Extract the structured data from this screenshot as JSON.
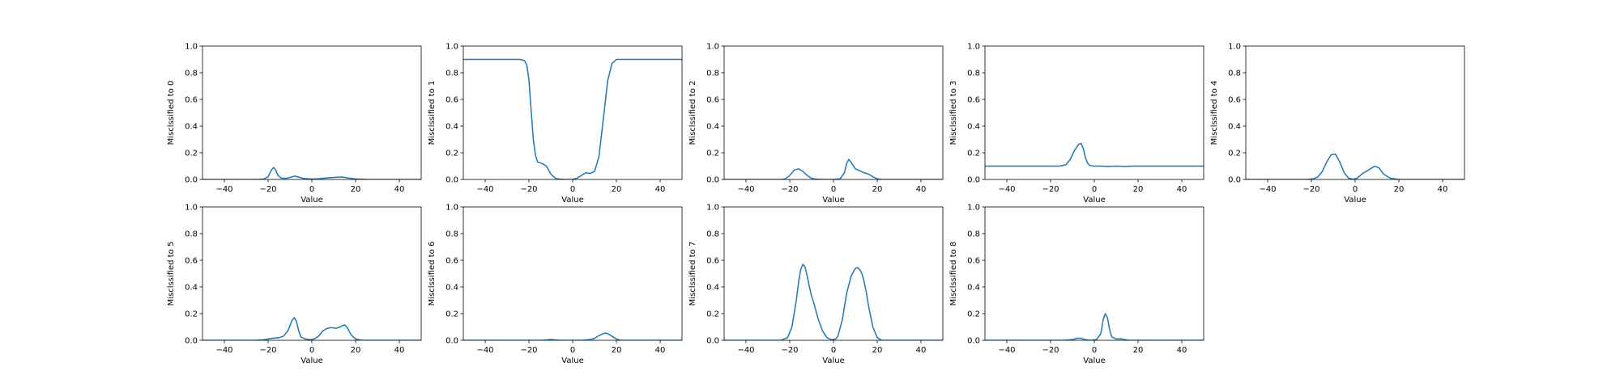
{
  "figure": {
    "background": "#ffffff",
    "line_color": "#1f77b4",
    "grid": false
  },
  "chart_data": [
    {
      "type": "line",
      "xlabel": "Value",
      "ylabel": "Misclssified to 0",
      "xlim": [
        -50,
        50
      ],
      "ylim": [
        0,
        1
      ],
      "xticks": [
        -40,
        -20,
        0,
        20,
        40
      ],
      "xtick_labels": [
        "−40",
        "−20",
        "0",
        "20",
        "40"
      ],
      "yticks": [
        0,
        0.2,
        0.4,
        0.6,
        0.8,
        1.0
      ],
      "ytick_labels": [
        "0.0",
        "0.2",
        "0.4",
        "0.6",
        "0.8",
        "1.0"
      ],
      "x": [
        -50,
        -25,
        -22,
        -20,
        -18.5,
        -17.5,
        -16.5,
        -15.5,
        -14,
        -12,
        -10,
        -8,
        -6,
        -4,
        -2,
        0,
        3,
        6,
        10,
        14,
        17,
        20,
        25,
        50
      ],
      "y": [
        0,
        0,
        0.003,
        0.02,
        0.07,
        0.09,
        0.07,
        0.03,
        0.01,
        0.008,
        0.015,
        0.025,
        0.018,
        0.008,
        0.005,
        0.003,
        0.005,
        0.01,
        0.015,
        0.018,
        0.01,
        0.004,
        0,
        0
      ]
    },
    {
      "type": "line",
      "xlabel": "Value",
      "ylabel": "Misclssified to 1",
      "xlim": [
        -50,
        50
      ],
      "ylim": [
        0,
        1
      ],
      "xticks": [
        -40,
        -20,
        0,
        20,
        40
      ],
      "xtick_labels": [
        "−40",
        "−20",
        "0",
        "20",
        "40"
      ],
      "yticks": [
        0,
        0.2,
        0.4,
        0.6,
        0.8,
        1.0
      ],
      "ytick_labels": [
        "0.0",
        "0.2",
        "0.4",
        "0.6",
        "0.8",
        "1.0"
      ],
      "x": [
        -50,
        -24,
        -22,
        -21,
        -20,
        -19,
        -18,
        -17,
        -16,
        -14,
        -12,
        -10,
        -8,
        -6,
        -3,
        0,
        2,
        4,
        6,
        8,
        10,
        12,
        14,
        16,
        18,
        20,
        22,
        24,
        50
      ],
      "y": [
        0.9,
        0.9,
        0.89,
        0.86,
        0.75,
        0.52,
        0.3,
        0.18,
        0.13,
        0.12,
        0.1,
        0.04,
        0.01,
        0.002,
        0,
        0,
        0.01,
        0.03,
        0.05,
        0.045,
        0.06,
        0.17,
        0.45,
        0.74,
        0.87,
        0.9,
        0.9,
        0.9,
        0.9
      ]
    },
    {
      "type": "line",
      "xlabel": "Value",
      "ylabel": "Misclssified to 2",
      "xlim": [
        -50,
        50
      ],
      "ylim": [
        0,
        1
      ],
      "xticks": [
        -40,
        -20,
        0,
        20,
        40
      ],
      "xtick_labels": [
        "−40",
        "−20",
        "0",
        "20",
        "40"
      ],
      "yticks": [
        0,
        0.2,
        0.4,
        0.6,
        0.8,
        1.0
      ],
      "ytick_labels": [
        "0.0",
        "0.2",
        "0.4",
        "0.6",
        "0.8",
        "1.0"
      ],
      "x": [
        -50,
        -24,
        -22,
        -20,
        -18,
        -16,
        -14,
        -12,
        -10,
        -8,
        -4,
        0,
        3,
        5,
        6,
        7,
        8,
        10,
        12,
        14,
        16,
        18,
        20,
        22,
        50
      ],
      "y": [
        0,
        0,
        0.005,
        0.03,
        0.07,
        0.08,
        0.06,
        0.03,
        0.008,
        0.002,
        0,
        0,
        0.005,
        0.05,
        0.12,
        0.15,
        0.13,
        0.08,
        0.065,
        0.05,
        0.04,
        0.02,
        0.005,
        0,
        0
      ]
    },
    {
      "type": "line",
      "xlabel": "Value",
      "ylabel": "Misclssified to 3",
      "xlim": [
        -50,
        50
      ],
      "ylim": [
        0,
        1
      ],
      "xticks": [
        -40,
        -20,
        0,
        20,
        40
      ],
      "xtick_labels": [
        "−40",
        "−20",
        "0",
        "20",
        "40"
      ],
      "yticks": [
        0,
        0.2,
        0.4,
        0.6,
        0.8,
        1.0
      ],
      "ytick_labels": [
        "0.0",
        "0.2",
        "0.4",
        "0.6",
        "0.8",
        "1.0"
      ],
      "x": [
        -50,
        -20,
        -16,
        -13,
        -11,
        -9,
        -7,
        -6,
        -5,
        -4,
        -3,
        -2,
        0,
        3,
        6,
        10,
        14,
        18,
        22,
        26,
        50
      ],
      "y": [
        0.1,
        0.1,
        0.1,
        0.11,
        0.15,
        0.22,
        0.265,
        0.27,
        0.23,
        0.16,
        0.12,
        0.105,
        0.1,
        0.1,
        0.098,
        0.1,
        0.098,
        0.1,
        0.1,
        0.1,
        0.1
      ]
    },
    {
      "type": "line",
      "xlabel": "Value",
      "ylabel": "Misclssified to 4",
      "xlim": [
        -50,
        50
      ],
      "ylim": [
        0,
        1
      ],
      "xticks": [
        -40,
        -20,
        0,
        20,
        40
      ],
      "xtick_labels": [
        "−40",
        "−20",
        "0",
        "20",
        "40"
      ],
      "yticks": [
        0,
        0.2,
        0.4,
        0.6,
        0.8,
        1.0
      ],
      "ytick_labels": [
        "0.0",
        "0.2",
        "0.4",
        "0.6",
        "0.8",
        "1.0"
      ],
      "x": [
        -50,
        -22,
        -19,
        -17,
        -15,
        -13,
        -11,
        -9,
        -7,
        -5,
        -3,
        -1,
        1,
        3,
        5,
        7,
        9,
        11,
        13,
        16,
        20,
        50
      ],
      "y": [
        0,
        0,
        0.005,
        0.02,
        0.06,
        0.13,
        0.185,
        0.19,
        0.13,
        0.05,
        0.01,
        0.002,
        0.01,
        0.04,
        0.06,
        0.08,
        0.1,
        0.085,
        0.04,
        0.01,
        0,
        0
      ]
    },
    {
      "type": "line",
      "xlabel": "Value",
      "ylabel": "Misclssified to 5",
      "xlim": [
        -50,
        50
      ],
      "ylim": [
        0,
        1
      ],
      "xticks": [
        -40,
        -20,
        0,
        20,
        40
      ],
      "xtick_labels": [
        "−40",
        "−20",
        "0",
        "20",
        "40"
      ],
      "yticks": [
        0,
        0.2,
        0.4,
        0.6,
        0.8,
        1.0
      ],
      "ytick_labels": [
        "0.0",
        "0.2",
        "0.4",
        "0.6",
        "0.8",
        "1.0"
      ],
      "x": [
        -50,
        -26,
        -22,
        -20,
        -18,
        -15,
        -13,
        -11,
        -9,
        -8,
        -7,
        -6,
        -5,
        -3,
        -1,
        1,
        3,
        5,
        7,
        9,
        11,
        13,
        14,
        15,
        16,
        17,
        18,
        20,
        23,
        50
      ],
      "y": [
        0,
        0,
        0.004,
        0.01,
        0.015,
        0.02,
        0.03,
        0.07,
        0.15,
        0.17,
        0.14,
        0.07,
        0.025,
        0.01,
        0.005,
        0.01,
        0.03,
        0.07,
        0.09,
        0.095,
        0.09,
        0.1,
        0.11,
        0.115,
        0.1,
        0.07,
        0.04,
        0.01,
        0,
        0
      ]
    },
    {
      "type": "line",
      "xlabel": "Value",
      "ylabel": "Misclssified to 6",
      "xlim": [
        -50,
        50
      ],
      "ylim": [
        0,
        1
      ],
      "xticks": [
        -40,
        -20,
        0,
        20,
        40
      ],
      "xtick_labels": [
        "−40",
        "−20",
        "0",
        "20",
        "40"
      ],
      "yticks": [
        0,
        0.2,
        0.4,
        0.6,
        0.8,
        1.0
      ],
      "ytick_labels": [
        "0.0",
        "0.2",
        "0.4",
        "0.6",
        "0.8",
        "1.0"
      ],
      "x": [
        -50,
        -14,
        -12,
        -10,
        -8,
        -6,
        -2,
        4,
        8,
        10,
        12,
        14,
        15,
        16,
        18,
        20,
        22,
        50
      ],
      "y": [
        0,
        0,
        0.002,
        0.006,
        0.003,
        0,
        0,
        0,
        0.005,
        0.015,
        0.035,
        0.05,
        0.055,
        0.05,
        0.03,
        0.01,
        0,
        0
      ]
    },
    {
      "type": "line",
      "xlabel": "Value",
      "ylabel": "Misclssified to 7",
      "xlim": [
        -50,
        50
      ],
      "ylim": [
        0,
        1
      ],
      "xticks": [
        -40,
        -20,
        0,
        20,
        40
      ],
      "xtick_labels": [
        "−40",
        "−20",
        "0",
        "20",
        "40"
      ],
      "yticks": [
        0,
        0.2,
        0.4,
        0.6,
        0.8,
        1.0
      ],
      "ytick_labels": [
        "0.0",
        "0.2",
        "0.4",
        "0.6",
        "0.8",
        "1.0"
      ],
      "x": [
        -50,
        -24,
        -21,
        -19,
        -17,
        -16,
        -15,
        -14,
        -13,
        -12,
        -11,
        -10,
        -9,
        -7,
        -5,
        -3,
        -1,
        1,
        2,
        4,
        6,
        8,
        10,
        11,
        12,
        13,
        14,
        15,
        16,
        18,
        20,
        22,
        50
      ],
      "y": [
        0,
        0,
        0.02,
        0.1,
        0.3,
        0.43,
        0.53,
        0.57,
        0.55,
        0.48,
        0.4,
        0.33,
        0.28,
        0.16,
        0.07,
        0.02,
        0.005,
        0.01,
        0.03,
        0.15,
        0.35,
        0.48,
        0.54,
        0.545,
        0.53,
        0.5,
        0.44,
        0.36,
        0.26,
        0.1,
        0.02,
        0,
        0
      ]
    },
    {
      "type": "line",
      "xlabel": "Value",
      "ylabel": "Misclssified to 8",
      "xlim": [
        -50,
        50
      ],
      "ylim": [
        0,
        1
      ],
      "xticks": [
        -40,
        -20,
        0,
        20,
        40
      ],
      "xtick_labels": [
        "−40",
        "−20",
        "0",
        "20",
        "40"
      ],
      "yticks": [
        0,
        0.2,
        0.4,
        0.6,
        0.8,
        1.0
      ],
      "ytick_labels": [
        "0.0",
        "0.2",
        "0.4",
        "0.6",
        "0.8",
        "1.0"
      ],
      "x": [
        -50,
        -14,
        -10,
        -8,
        -6,
        -4,
        -2,
        1,
        3,
        4,
        5,
        6,
        7,
        8,
        10,
        12,
        14,
        16,
        50
      ],
      "y": [
        0,
        0,
        0.005,
        0.015,
        0.015,
        0.005,
        0,
        0.005,
        0.05,
        0.15,
        0.2,
        0.17,
        0.08,
        0.025,
        0.01,
        0.012,
        0.005,
        0,
        0
      ]
    }
  ]
}
